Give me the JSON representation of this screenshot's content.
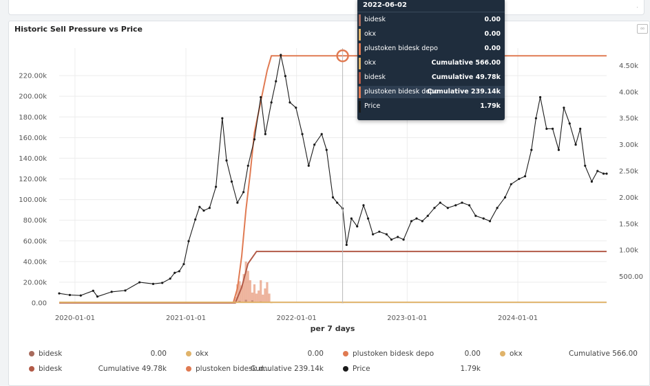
{
  "panel": {
    "title": "Historic Sell Pressure vs Price",
    "menu_icon": "expand-icon"
  },
  "colors": {
    "bidesk": "#a86b5c",
    "okx": "#e0b36a",
    "plustoken": "#e07a52",
    "bidesk_cum": "#b25a47",
    "price": "#1a1a1a",
    "grid": "#ececec"
  },
  "chart_data": {
    "type": "line",
    "xlabel": "per 7 days",
    "x_ticks": [
      "2020-01-01",
      "2021-01-01",
      "2022-01-01",
      "2023-01-01",
      "2024-01-01"
    ],
    "y_left_ticks": [
      "0.00",
      "20.00k",
      "40.00k",
      "60.00k",
      "80.00k",
      "100.00k",
      "120.00k",
      "140.00k",
      "160.00k",
      "180.00k",
      "200.00k",
      "220.00k"
    ],
    "y_right_ticks": [
      "500.00",
      "1.00k",
      "1.50k",
      "2.00k",
      "2.50k",
      "3.00k",
      "3.50k",
      "4.00k",
      "4.50k"
    ],
    "ylim_left": [
      0,
      240000
    ],
    "ylim_right": [
      0,
      4700
    ],
    "series": [
      {
        "name": "plustoken bidesk depo",
        "kind": "bar",
        "axis": "left",
        "x": [
          "2021-06-13",
          "2021-06-20",
          "2021-06-27",
          "2021-07-04",
          "2021-07-11",
          "2021-07-18",
          "2021-07-25",
          "2021-08-01",
          "2021-08-08",
          "2021-08-15",
          "2021-08-22",
          "2021-08-29",
          "2021-09-05",
          "2021-09-12",
          "2021-09-19",
          "2021-09-26",
          "2021-10-03"
        ],
        "y": [
          6000,
          18000,
          21000,
          17000,
          28000,
          40000,
          31000,
          22000,
          10000,
          18000,
          9000,
          12000,
          22000,
          8000,
          14000,
          20000,
          9000
        ]
      },
      {
        "name": "bidesk",
        "kind": "bar",
        "axis": "left",
        "x": [
          "2021-06-27",
          "2021-07-18",
          "2021-08-08",
          "2021-09-05"
        ],
        "y": [
          2000,
          3000,
          2500,
          1500
        ]
      },
      {
        "name": "okx",
        "kind": "bar",
        "axis": "left",
        "x": [
          "2021-10-10",
          "2022-06-02"
        ],
        "y": [
          0,
          0
        ]
      },
      {
        "name": "plustoken bidesk depo",
        "kind": "cumulative",
        "axis": "left",
        "x": [
          "2019-11-10",
          "2021-06-06",
          "2021-06-20",
          "2021-07-04",
          "2021-07-18",
          "2021-08-01",
          "2021-08-15",
          "2021-08-29",
          "2021-09-12",
          "2021-09-26",
          "2021-10-10",
          "2024-10-20"
        ],
        "y": [
          0,
          0,
          14000,
          45000,
          90000,
          125000,
          165000,
          185000,
          205000,
          225000,
          239140,
          239140
        ]
      },
      {
        "name": "bidesk",
        "kind": "cumulative",
        "axis": "left",
        "x": [
          "2019-11-10",
          "2021-06-13",
          "2021-07-04",
          "2021-07-25",
          "2021-08-22",
          "2024-10-20"
        ],
        "y": [
          0,
          0,
          15000,
          38000,
          49780,
          49780
        ]
      },
      {
        "name": "okx",
        "kind": "cumulative",
        "axis": "left",
        "x": [
          "2019-11-10",
          "2024-10-20"
        ],
        "y": [
          566,
          566
        ]
      },
      {
        "name": "Price",
        "kind": "line",
        "axis": "right",
        "x": [
          "2019-11-10",
          "2019-12-15",
          "2020-01-20",
          "2020-03-01",
          "2020-03-15",
          "2020-05-01",
          "2020-06-15",
          "2020-08-01",
          "2020-09-15",
          "2020-10-15",
          "2020-11-10",
          "2020-11-25",
          "2020-12-10",
          "2020-12-25",
          "2021-01-10",
          "2021-02-01",
          "2021-02-15",
          "2021-03-01",
          "2021-03-20",
          "2021-04-10",
          "2021-05-01",
          "2021-05-15",
          "2021-06-01",
          "2021-06-20",
          "2021-07-10",
          "2021-07-25",
          "2021-08-15",
          "2021-09-05",
          "2021-09-20",
          "2021-10-10",
          "2021-10-25",
          "2021-11-10",
          "2021-11-25",
          "2021-12-10",
          "2021-12-30",
          "2022-01-20",
          "2022-02-10",
          "2022-03-01",
          "2022-03-25",
          "2022-04-10",
          "2022-05-01",
          "2022-05-15",
          "2022-06-02",
          "2022-06-15",
          "2022-07-01",
          "2022-07-20",
          "2022-08-10",
          "2022-08-25",
          "2022-09-10",
          "2022-10-01",
          "2022-10-25",
          "2022-11-10",
          "2022-12-01",
          "2022-12-20",
          "2023-01-15",
          "2023-02-01",
          "2023-02-20",
          "2023-03-10",
          "2023-04-01",
          "2023-04-20",
          "2023-05-15",
          "2023-06-10",
          "2023-07-01",
          "2023-07-25",
          "2023-08-15",
          "2023-09-10",
          "2023-10-01",
          "2023-10-25",
          "2023-11-20",
          "2023-12-10",
          "2024-01-05",
          "2024-01-25",
          "2024-02-15",
          "2024-03-01",
          "2024-03-15",
          "2024-04-05",
          "2024-04-25",
          "2024-05-15",
          "2024-06-01",
          "2024-06-20",
          "2024-07-10",
          "2024-07-25",
          "2024-08-10",
          "2024-09-01",
          "2024-09-20",
          "2024-10-10",
          "2024-10-20"
        ],
        "y": [
          180,
          150,
          140,
          230,
          120,
          210,
          235,
          390,
          360,
          380,
          460,
          570,
          600,
          735,
          1170,
          1580,
          1820,
          1750,
          1800,
          2200,
          3500,
          2700,
          2300,
          1900,
          2100,
          2600,
          3100,
          3900,
          3200,
          3800,
          4200,
          4700,
          4300,
          3800,
          3700,
          3200,
          2600,
          3000,
          3200,
          2900,
          2000,
          1900,
          1790,
          1100,
          1600,
          1450,
          1850,
          1600,
          1300,
          1350,
          1300,
          1200,
          1250,
          1200,
          1550,
          1600,
          1550,
          1650,
          1800,
          1900,
          1800,
          1850,
          1900,
          1850,
          1650,
          1600,
          1550,
          1800,
          2000,
          2250,
          2350,
          2400,
          2900,
          3500,
          3900,
          3300,
          3300,
          2900,
          3700,
          3400,
          3000,
          3300,
          2600,
          2300,
          2500,
          2450,
          2450
        ]
      }
    ]
  },
  "tooltip": {
    "date": "2022-06-02",
    "rows": [
      {
        "name": "bidesk",
        "value": "0.00",
        "color": "#a86b5c",
        "highlight": false
      },
      {
        "name": "okx",
        "value": "0.00",
        "color": "#e0b36a",
        "highlight": false
      },
      {
        "name": "plustoken bidesk depo",
        "value": "0.00",
        "color": "#e07a52",
        "highlight": false
      },
      {
        "name": "okx",
        "value": "Cumulative 566.00",
        "color": "#e0b36a",
        "highlight": false
      },
      {
        "name": "bidesk",
        "value": "Cumulative 49.78k",
        "color": "#b25a47",
        "highlight": false
      },
      {
        "name": "plustoken bidesk depo",
        "value": "Cumulative 239.14k",
        "color": "#e07a52",
        "highlight": true
      },
      {
        "name": "Price",
        "value": "1.79k",
        "color": "#1a1a1a",
        "highlight": false
      }
    ]
  },
  "legend": [
    {
      "name": "bidesk",
      "value": "0.00",
      "color": "#a86b5c"
    },
    {
      "name": "okx",
      "value": "0.00",
      "color": "#e0b36a"
    },
    {
      "name": "plustoken bidesk depo",
      "value": "0.00",
      "color": "#e07a52"
    },
    {
      "name": "okx",
      "value": "Cumulative 566.00",
      "color": "#e0b36a"
    },
    {
      "name": "bidesk",
      "value": "Cumulative 49.78k",
      "color": "#b25a47"
    },
    {
      "name": "plustoken bidesk d…",
      "value": "Cumulative 239.14k",
      "color": "#e07a52"
    },
    {
      "name": "Price",
      "value": "1.79k",
      "color": "#1a1a1a"
    }
  ]
}
